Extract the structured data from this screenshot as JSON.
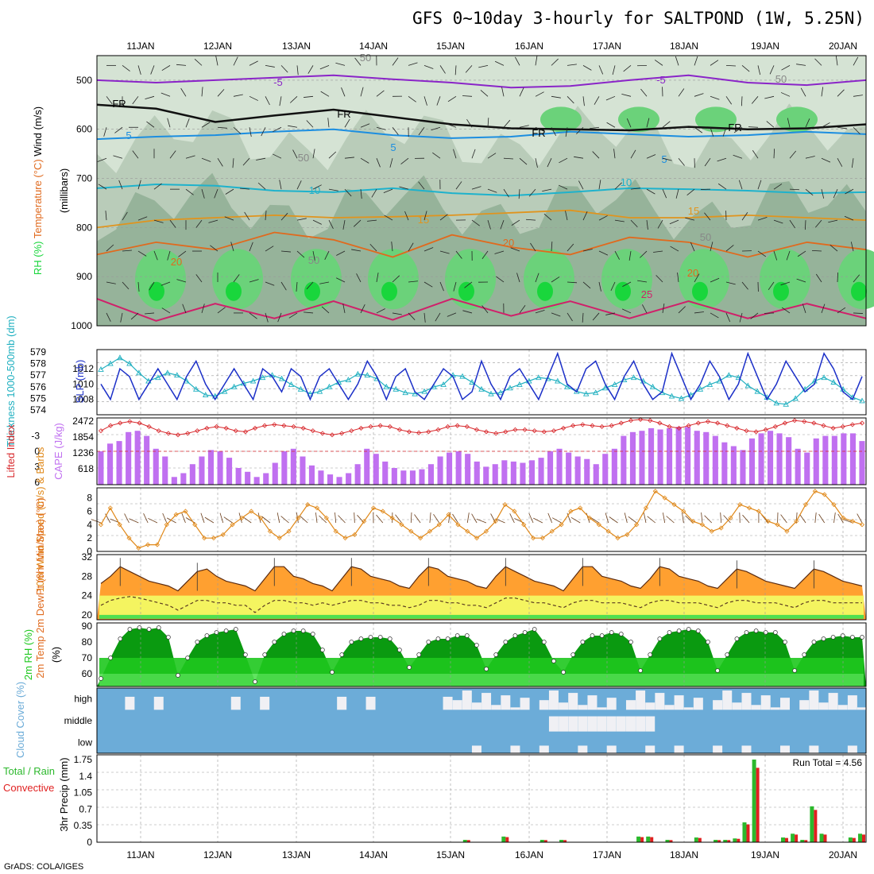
{
  "title": "GFS 0~10day 3-hourly for SALTPOND (1W, 5.25N)",
  "footer": "GrADS: COLA/IGES",
  "dates": [
    "11JAN",
    "12JAN",
    "13JAN",
    "14JAN",
    "15JAN",
    "16JAN",
    "17JAN",
    "18JAN",
    "19JAN",
    "20JAN"
  ],
  "colors": {
    "rh_light": "#d5e3d4",
    "rh_mid": "#b4c8b4",
    "rh_dark": "#8fae94",
    "rh_green": "#6bd27a",
    "rh_bright": "#19d63c",
    "temp_purple": "#8a24c8",
    "temp_blue": "#1c8ee0",
    "temp_cyan": "#1eb2cc",
    "temp_orange": "#e0941e",
    "temp_dorange": "#e06a1e",
    "temp_magenta": "#d0206a",
    "slp": "#1c30c8",
    "thick": "#20b0c0",
    "li": "#d8282c",
    "cape": "#c070f0",
    "wind": "#e08818",
    "t2m_fill": "#ffa030",
    "t2m_top": "#f06010",
    "dew_fill": "#f4f460",
    "rh2_dark": "#0a9a10",
    "rh2_mid": "#1ec81e",
    "rh2_light": "#50e050",
    "cloud_bg": "#6cacd8",
    "cloud_fill": "#f0f0f4",
    "precip_total": "#2cb82c",
    "precip_conv": "#e02020"
  },
  "chart_data": [
    {
      "type": "heatmap",
      "name": "rh_temperature_wind_cross_section",
      "ylabel_parts": [
        "RH (%)",
        "Temperature (°C)",
        "Wind (m/s)"
      ],
      "ylabel2": "(millibars)",
      "yticks": [
        "500",
        "600",
        "700",
        "800",
        "900",
        "1000"
      ],
      "contour_labels": [
        "-5",
        "-5",
        "FR",
        "FR",
        "FR",
        "FR",
        "5",
        "5",
        "5",
        "10",
        "10",
        "15",
        "15",
        "20",
        "20",
        "20",
        "25",
        "50",
        "50",
        "50",
        "50",
        "50"
      ],
      "freezing_level_mb": [
        550,
        558,
        585,
        572,
        560,
        575,
        590,
        598,
        600,
        602,
        595,
        600,
        598,
        590
      ],
      "isotherm_minus5_mb": [
        500,
        505,
        500,
        495,
        490,
        498,
        505,
        515,
        512,
        500,
        490,
        505,
        510,
        500
      ],
      "isotherm_5_mb": [
        620,
        615,
        612,
        605,
        600,
        612,
        618,
        615,
        605,
        610,
        615,
        612,
        605,
        610
      ],
      "isotherm_10_mb": [
        720,
        712,
        715,
        725,
        728,
        720,
        730,
        735,
        728,
        720,
        722,
        725,
        730,
        728
      ],
      "isotherm_15_mb": [
        800,
        785,
        780,
        775,
        780,
        778,
        775,
        770,
        765,
        780,
        780,
        775,
        780,
        785
      ],
      "isotherm_20_mb": [
        855,
        830,
        845,
        810,
        825,
        860,
        815,
        840,
        855,
        820,
        830,
        860,
        830,
        845
      ],
      "isotherm_25_mb": [
        945,
        990,
        955,
        985,
        950,
        988,
        945,
        980,
        950,
        985,
        950,
        985,
        955,
        985
      ]
    },
    {
      "type": "line",
      "name": "slp_thickness",
      "ylabel_left": "Thickness 1000-500mb (dm)",
      "ylabel_right": "SLP (mb)",
      "yticks_left": [
        "574",
        "575",
        "576",
        "577",
        "578",
        "579"
      ],
      "yticks_right": [
        "1008",
        "1010",
        "1012"
      ],
      "slp": [
        1010,
        1008,
        1012,
        1011,
        1008,
        1010,
        1012,
        1010,
        1008,
        1011,
        1013,
        1010,
        1008,
        1010,
        1012,
        1010,
        1008,
        1012,
        1011,
        1009,
        1012,
        1011,
        1008,
        1011,
        1012,
        1010,
        1008,
        1010,
        1013,
        1011,
        1008,
        1011,
        1012,
        1009,
        1008,
        1010,
        1012,
        1011,
        1008,
        1009,
        1013,
        1010,
        1008,
        1011,
        1012,
        1010,
        1008,
        1011,
        1014,
        1010,
        1009,
        1012,
        1013,
        1010,
        1008,
        1011,
        1013,
        1010,
        1008,
        1009,
        1014,
        1011,
        1008,
        1010,
        1013,
        1011,
        1008,
        1010,
        1014,
        1011,
        1008,
        1010,
        1013,
        1011,
        1009,
        1010,
        1014,
        1012,
        1009,
        1008,
        1011
      ],
      "thickness": [
        577.5,
        578,
        578.5,
        578,
        577.2,
        576.5,
        576.8,
        577.2,
        577,
        576.5,
        575.8,
        575.3,
        575.2,
        575.6,
        576,
        576.3,
        576.5,
        576.8,
        577,
        576.7,
        576.2,
        575.8,
        575.4,
        575.6,
        576,
        576.4,
        576.6,
        577.1,
        577,
        576.7,
        576,
        575.8,
        575.5,
        575.4,
        575.6,
        576,
        576.2,
        577,
        576.9,
        576.4,
        575.8,
        575.4,
        575.5,
        575.9,
        576.2,
        576.5,
        576.8,
        576.7,
        576.5,
        576,
        575.6,
        575.4,
        575.5,
        575.9,
        576.2,
        576.6,
        576.8,
        576.5,
        576,
        575.5,
        575.2,
        575,
        575.3,
        575.8,
        576.2,
        576.5,
        577,
        576.8,
        576.1,
        575.6,
        575.1,
        574.6,
        574.5,
        575,
        575.8,
        576.5,
        576.8,
        576.4,
        575.8,
        575.1,
        574.8
      ]
    },
    {
      "type": "bar",
      "name": "lifted_index_cape",
      "ylabel_left": "Lifted Index",
      "ylabel_right": "CAPE (J/kg)",
      "yticks_left": [
        "-3",
        "0",
        "3",
        "6"
      ],
      "yticks_right": [
        "618",
        "1236",
        "1854",
        "2472"
      ],
      "cape": [
        1300,
        1600,
        1700,
        2050,
        2100,
        1900,
        1400,
        1100,
        300,
        450,
        800,
        1100,
        1350,
        1300,
        1050,
        650,
        500,
        300,
        450,
        850,
        1300,
        1400,
        1100,
        750,
        550,
        400,
        300,
        450,
        800,
        1400,
        1200,
        900,
        650,
        550,
        550,
        600,
        800,
        1100,
        1250,
        1300,
        1200,
        900,
        700,
        800,
        950,
        900,
        850,
        950,
        1050,
        1300,
        1400,
        1250,
        1100,
        1000,
        800,
        1200,
        1400,
        1900,
        2050,
        2100,
        2200,
        2150,
        2200,
        2250,
        2250,
        2100,
        2050,
        1900,
        1650,
        1500,
        1350,
        1800,
        2000,
        2100,
        2000,
        1850,
        1400,
        1250,
        1800,
        1900,
        1900,
        2000,
        2000,
        1700
      ],
      "lifted_index": [
        -4,
        -5,
        -5.5,
        -5.8,
        -5.5,
        -4.8,
        -4,
        -3.5,
        -3.2,
        -3.5,
        -4,
        -4.5,
        -4.8,
        -4.5,
        -4,
        -3.8,
        -4.5,
        -5,
        -5.2,
        -5,
        -4.8,
        -4.5,
        -4,
        -3.5,
        -3.2,
        -3.5,
        -4,
        -4.5,
        -4.8,
        -5,
        -4.8,
        -4.2,
        -3.8,
        -3.6,
        -3.8,
        -4.2,
        -4.8,
        -5,
        -4.8,
        -4.2,
        -3.8,
        -3.5,
        -3.8,
        -4.2,
        -4.2,
        -4,
        -3.8,
        -4,
        -4.5,
        -5,
        -5.2,
        -5,
        -4.8,
        -5,
        -5.5,
        -6,
        -6.2,
        -6,
        -5.5,
        -4.8,
        -4.5,
        -5,
        -5.5,
        -5.8,
        -5.5,
        -5,
        -4.5,
        -4,
        -3.8,
        -4.2,
        -4.8,
        -5.5,
        -6,
        -5.8,
        -5.5,
        -5,
        -4.5,
        -4.8,
        -5.2,
        -5.5
      ]
    },
    {
      "type": "line",
      "name": "wind_10m",
      "ylabel": "10m Wind Speed (m/s) & Barbs",
      "yticks": [
        "0",
        "2",
        "4",
        "6",
        "8"
      ],
      "speed": [
        4,
        6.5,
        4,
        2,
        0.5,
        1,
        1,
        4,
        5.5,
        6,
        4,
        2,
        2,
        2.5,
        4,
        5,
        6,
        5,
        3,
        2,
        3,
        5,
        7,
        6.5,
        5,
        3,
        2,
        2.5,
        4.5,
        6.5,
        6,
        5,
        4,
        3,
        2,
        3,
        4,
        5.5,
        4,
        3,
        2,
        3,
        4.5,
        7,
        6,
        4,
        2,
        2,
        3,
        4,
        6,
        6.5,
        5,
        4,
        3,
        2,
        2.5,
        4,
        6.5,
        9,
        8,
        7,
        6,
        4.5,
        4,
        3,
        3.5,
        5,
        7,
        6.5,
        6,
        4.5,
        4,
        3,
        4.5,
        7,
        9,
        8.5,
        7,
        5,
        4.5,
        4
      ]
    },
    {
      "type": "area",
      "name": "temp_2m",
      "ylabel": "2m Temp 2m DewPt (6hr Min/Max) (°C)",
      "yticks": [
        "20",
        "24",
        "28",
        "32"
      ],
      "temp": [
        26.5,
        28,
        30,
        29,
        28,
        27,
        26.5,
        26,
        25,
        27,
        29,
        29.5,
        28,
        27,
        26.5,
        26,
        25,
        27.5,
        30,
        30,
        28,
        27.5,
        26.5,
        26,
        25,
        27.5,
        30,
        29.5,
        28,
        27.5,
        27,
        26,
        25.5,
        28,
        30,
        29.5,
        28,
        27.5,
        27,
        26,
        25.5,
        28,
        30,
        29,
        28,
        27,
        26.5,
        26,
        25,
        27.5,
        30,
        30,
        28,
        27.5,
        27,
        26,
        25.5,
        27.5,
        30,
        29.5,
        28,
        27.5,
        27,
        26,
        25.5,
        27.5,
        29.5,
        29,
        28,
        27,
        26.5,
        26,
        25.5,
        27.5,
        29.5,
        29,
        28,
        27,
        26.5,
        26
      ],
      "dewpt": [
        22,
        23,
        23.5,
        23.8,
        23.5,
        23,
        22.5,
        22,
        21,
        22,
        23,
        23,
        22.5,
        22.5,
        22,
        22,
        20.5,
        22,
        23,
        23,
        22.5,
        22.5,
        22,
        22.5,
        22,
        22.5,
        23,
        23,
        22.5,
        22.5,
        22,
        22,
        21.5,
        22,
        23,
        23,
        22.5,
        22.5,
        22,
        22,
        21.5,
        22.5,
        23.5,
        23.5,
        23,
        22.5,
        22.5,
        22,
        21.5,
        22.5,
        23,
        23,
        22.5,
        22.5,
        22.5,
        22,
        21.5,
        22.5,
        23,
        23,
        22.5,
        22.5,
        22.5,
        22,
        21.5,
        22.5,
        23,
        23,
        22.5,
        22.5,
        22.5,
        22,
        21.5,
        22.5,
        23,
        23,
        22.5,
        22.5,
        22.5,
        22.5
      ]
    },
    {
      "type": "area",
      "name": "rh_2m",
      "ylabel": "2m RH (%)",
      "yticks": [
        "60",
        "70",
        "80",
        "90"
      ],
      "rh": [
        57,
        70,
        82,
        88,
        89,
        88,
        89,
        83,
        59,
        70,
        80,
        84,
        86,
        87,
        88,
        72,
        55,
        72,
        80,
        85,
        87,
        87,
        85,
        75,
        61,
        72,
        80,
        82,
        83,
        83,
        82,
        75,
        64,
        72,
        80,
        82,
        82,
        84,
        84,
        78,
        63,
        72,
        80,
        84,
        86,
        88,
        80,
        68,
        61,
        72,
        80,
        84,
        84,
        86,
        85,
        80,
        62,
        72,
        82,
        86,
        87,
        88,
        87,
        80,
        62,
        72,
        82,
        86,
        87,
        86,
        86,
        80,
        62,
        72,
        80,
        82,
        83,
        84,
        83,
        83
      ]
    },
    {
      "type": "bar",
      "name": "cloud_cover",
      "ylabel": "Cloud Cover (%)",
      "yticks": [
        "high",
        "middle",
        "low"
      ]
    },
    {
      "type": "bar",
      "name": "precip_3hr",
      "ylabel_left": "Total / Rain",
      "ylabel_right": "Convective",
      "ylabel": "3hr Precip (mm)",
      "yticks": [
        "0",
        "0.35",
        "0.7",
        "1.05",
        "1.4",
        "1.75"
      ],
      "run_total_label": "Run Total = 4.56",
      "ylim": [
        0,
        1.75
      ]
    }
  ]
}
